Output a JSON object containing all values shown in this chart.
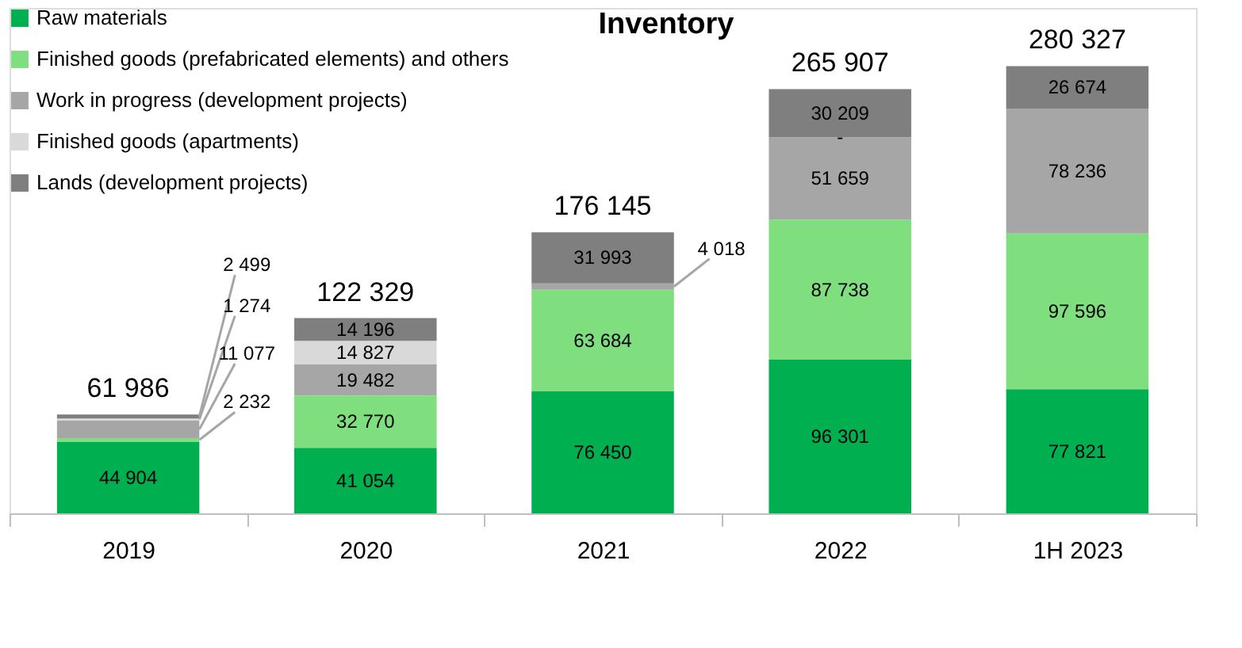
{
  "chart_data": {
    "type": "bar",
    "title": "Inventory",
    "stacked": true,
    "legend": "top left",
    "grid": false,
    "categories": [
      "2019",
      "2020",
      "2021",
      "2022",
      "1H 2023"
    ],
    "series": [
      {
        "name": "Raw materials",
        "color": "#00b050",
        "values": [
          44904,
          41054,
          76450,
          96301,
          77821
        ],
        "value_labels": [
          "44 904",
          "41 054",
          "76 450",
          "96 301",
          "77 821"
        ]
      },
      {
        "name": "Finished goods (prefabricated elements) and others",
        "color": "#7fdf7f",
        "values": [
          2232,
          32770,
          63684,
          87738,
          97596
        ],
        "value_labels": [
          "2 232",
          "32 770",
          "63 684",
          "87 738",
          "97 596"
        ]
      },
      {
        "name": "Work in progress (development projects)",
        "color": "#a6a6a6",
        "values": [
          11077,
          19482,
          4018,
          51659,
          78236
        ],
        "value_labels": [
          "11 077",
          "19 482",
          "4 018",
          "51 659",
          "78 236"
        ]
      },
      {
        "name": "Finished goods (apartments)",
        "color": "#d9d9d9",
        "values": [
          1274,
          14827,
          null,
          0,
          null
        ],
        "value_labels": [
          "1 274",
          "14 827",
          null,
          "-",
          null
        ]
      },
      {
        "name": "Lands (development projects)",
        "color": "#7f7f7f",
        "values": [
          2499,
          14196,
          31993,
          30209,
          26674
        ],
        "value_labels": [
          "2 499",
          "14 196",
          "31 993",
          "30 209",
          "26 674"
        ]
      }
    ],
    "totals": [
      "61 986",
      "122 329",
      "176 145",
      "265 907",
      "280 327"
    ]
  }
}
